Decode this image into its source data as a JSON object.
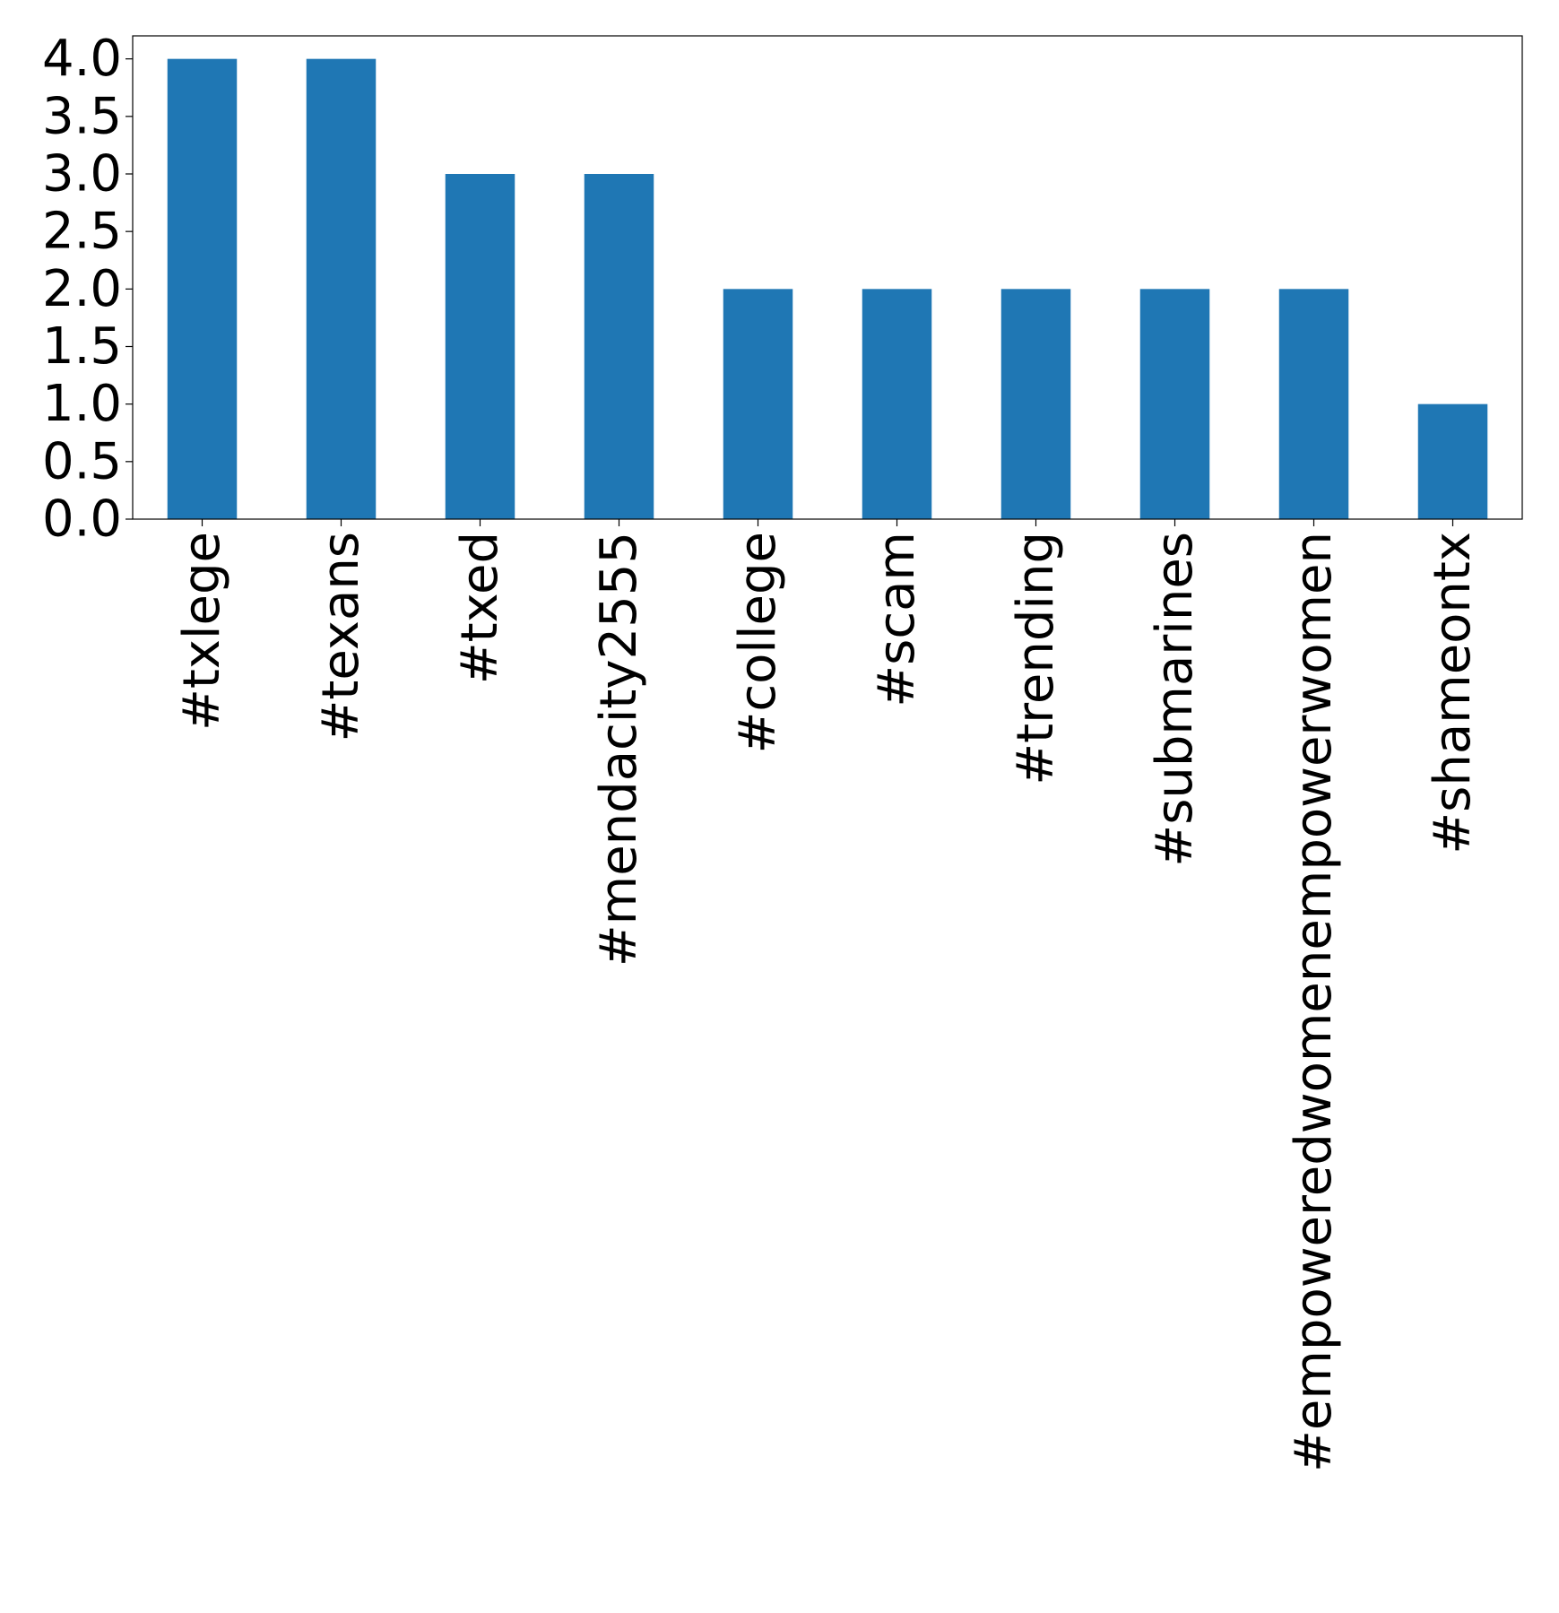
{
  "chart_data": {
    "type": "bar",
    "title": "",
    "xlabel": "",
    "ylabel": "",
    "categories": [
      "#txlege",
      "#texans",
      "#txed",
      "#mendacity2555",
      "#college",
      "#scam",
      "#trending",
      "#submarines",
      "#empoweredwomenempowerwomen",
      "#shameontx"
    ],
    "values": [
      4,
      4,
      3,
      3,
      2,
      2,
      2,
      2,
      2,
      1
    ],
    "ylim": [
      0,
      4.2
    ],
    "yticks": [
      "0.0",
      "0.5",
      "1.0",
      "1.5",
      "2.0",
      "2.5",
      "3.0",
      "3.5",
      "4.0"
    ],
    "bar_color": "#1f77b4",
    "grid": false,
    "legend": "none"
  }
}
